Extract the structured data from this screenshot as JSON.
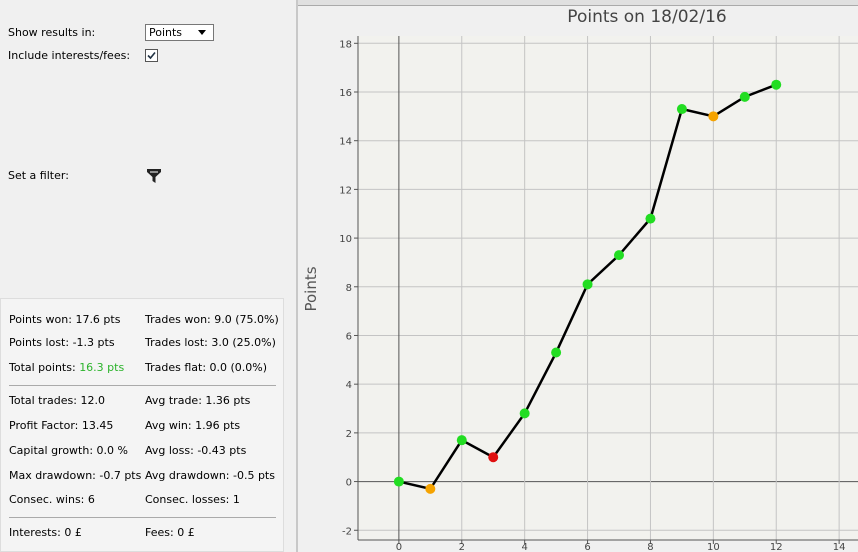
{
  "panel": {
    "show_results_label": "Show results in:",
    "show_results_value": "Points",
    "include_fees_label": "Include interests/fees:",
    "filter_label": "Set a filter:",
    "stats": [
      [
        {
          "label": "Points won: 17.6 pts"
        },
        {
          "label": "Trades won: 9.0 (75.0%)"
        }
      ],
      [
        {
          "label": "Points lost: -1.3 pts"
        },
        {
          "label": "Trades lost: 3.0 (25.0%)"
        }
      ],
      [
        {
          "label": "Total points: ",
          "value": "16.3 pts"
        },
        {
          "label": "Trades flat: 0.0 (0.0%)"
        }
      ],
      [
        {
          "label": "Total trades: 12.0"
        },
        {
          "label": "Avg trade: 1.36 pts"
        }
      ],
      [
        {
          "label": "Profit Factor: 13.45"
        },
        {
          "label": "Avg win: 1.96 pts"
        }
      ],
      [
        {
          "label": "Capital growth: 0.0 %"
        },
        {
          "label": "Avg loss: -0.43 pts"
        }
      ],
      [
        {
          "label": "Max drawdown: -0.7 pts"
        },
        {
          "label": "Avg drawdown: -0.5 pts"
        }
      ],
      [
        {
          "label": "Consec. wins: 6"
        },
        {
          "label": "Consec. losses: 1"
        }
      ],
      [
        {
          "label": "Interests: 0 £"
        },
        {
          "label": "Fees: 0 £"
        }
      ]
    ]
  },
  "chart_data": {
    "type": "line",
    "title": "Points on 18/02/16",
    "y_label": "Points",
    "x": [
      0,
      1,
      2,
      3,
      4,
      5,
      6,
      7,
      8,
      9,
      10,
      11,
      12
    ],
    "values": [
      0,
      -0.3,
      1.7,
      1.0,
      2.8,
      5.3,
      8.1,
      9.3,
      10.8,
      15.3,
      15.0,
      15.8,
      16.3
    ],
    "color": "#000000",
    "point_colors": [
      "#22dd22",
      "#f5a300",
      "#22dd22",
      "#e01010",
      "#22dd22",
      "#22dd22",
      "#22dd22",
      "#22dd22",
      "#22dd22",
      "#22dd22",
      "#f5a300",
      "#22dd22",
      "#22dd22"
    ],
    "xlim": [
      -1.3,
      14.6
    ],
    "xticks": [
      0,
      2,
      4,
      6,
      8,
      10,
      12,
      14
    ],
    "ylim": [
      -2.4,
      18.3
    ],
    "yticks": [
      -2,
      0,
      2,
      4,
      6,
      8,
      10,
      12,
      14,
      16,
      18
    ],
    "grid": true
  }
}
